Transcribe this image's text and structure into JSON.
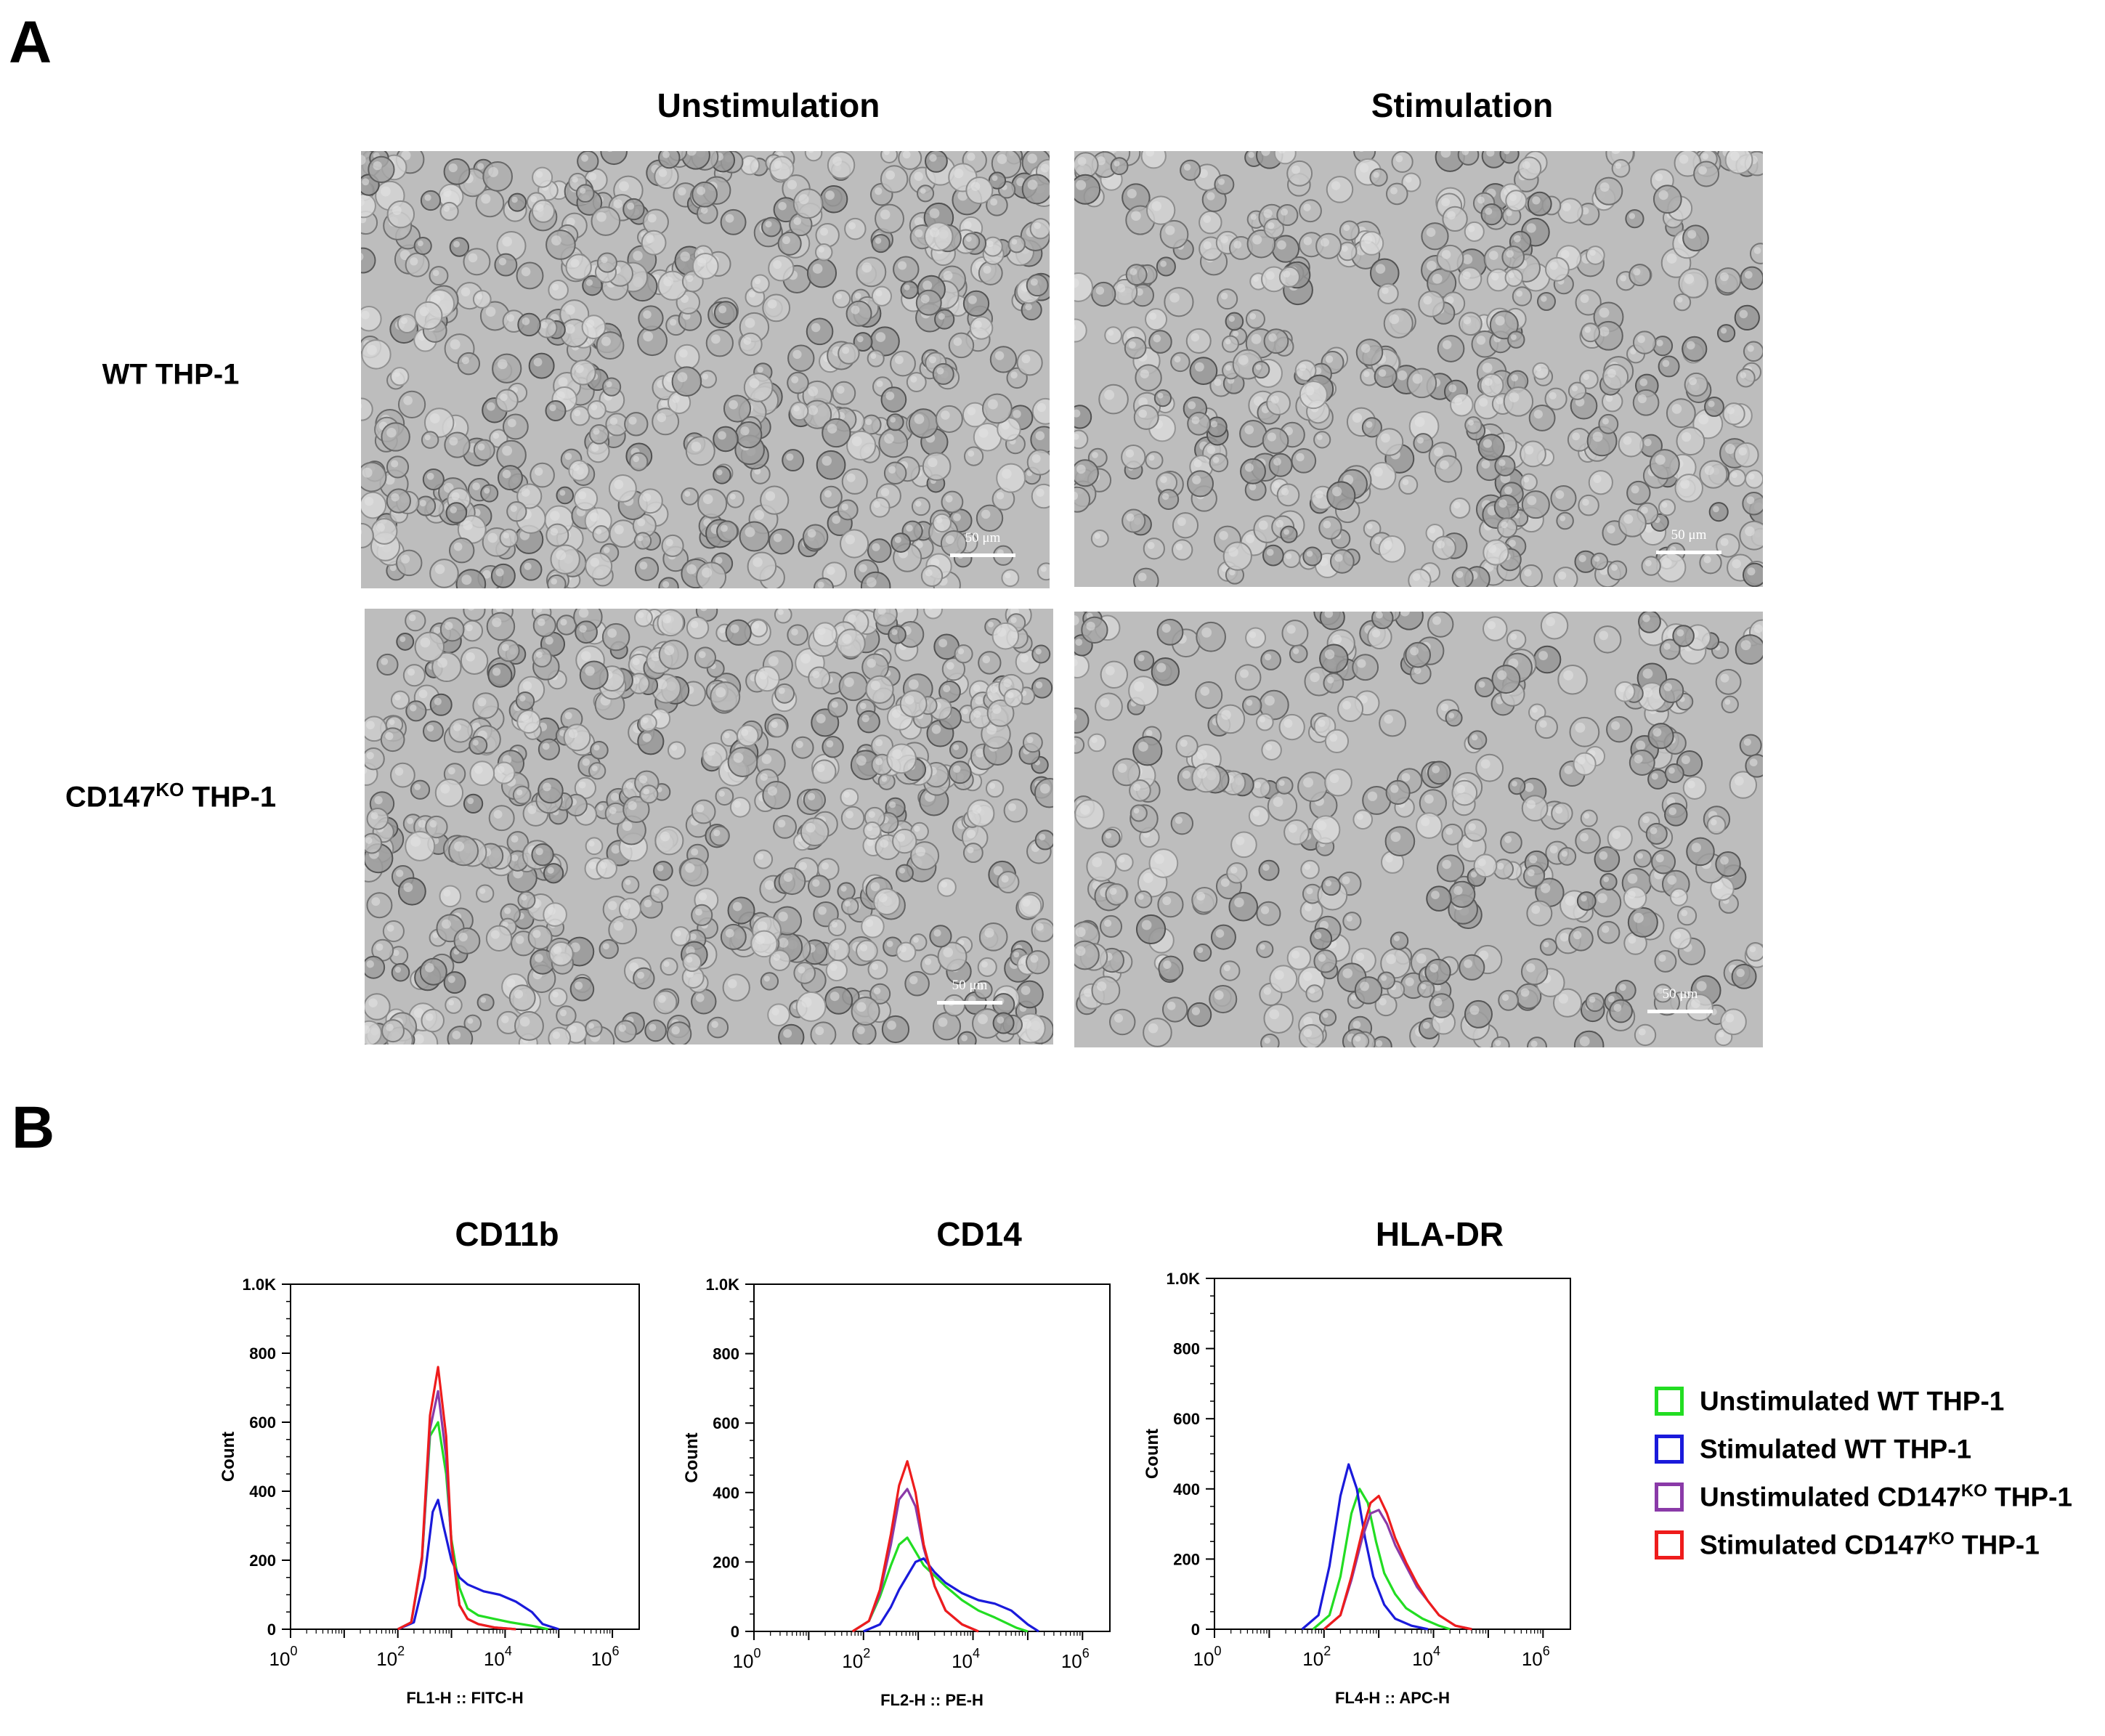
{
  "panel_a": {
    "letter": "A",
    "column_headers": [
      "Unstimulation",
      "Stimulation"
    ],
    "row_headers": [
      {
        "main": "WT THP-1",
        "sup": "",
        "rest": ""
      },
      {
        "main": "CD147",
        "sup": "KO",
        "rest": " THP-1"
      }
    ],
    "scale_bar_label": "50 μm"
  },
  "panel_b": {
    "letter": "B",
    "legend": [
      {
        "main": "Unstimulated WT THP-1",
        "sup": "",
        "rest": "",
        "color": "#22dd22"
      },
      {
        "main": "Stimulated WT THP-1",
        "sup": "",
        "rest": "",
        "color": "#1a1adb"
      },
      {
        "main": "Unstimulated CD147",
        "sup": "KO",
        "rest": " THP-1",
        "color": "#8a3aa8"
      },
      {
        "main": "Stimulated CD147",
        "sup": "KO",
        "rest": " THP-1",
        "color": "#ee1c1c"
      }
    ]
  },
  "chart_data": [
    {
      "type": "line",
      "title": "CD11b",
      "xlabel": "FL1-H :: FITC-H",
      "ylabel": "Count",
      "xscale": "log",
      "xlim": [
        0,
        6.5
      ],
      "ylim": [
        0,
        1000
      ],
      "y_ticks": [
        0,
        200,
        400,
        600,
        800,
        1000
      ],
      "y_tick_labels": [
        "0",
        "200",
        "400",
        "600",
        "800",
        "1.0K"
      ],
      "x_tick_labels": [
        {
          "base": "10",
          "exp": "0"
        },
        {
          "base": "10",
          "exp": "2"
        },
        {
          "base": "10",
          "exp": "4"
        },
        {
          "base": "10",
          "exp": "6"
        }
      ],
      "series": [
        {
          "name": "Unstimulated WT THP-1",
          "color": "#22dd22",
          "x": [
            2.0,
            2.25,
            2.45,
            2.6,
            2.75,
            2.9,
            3.0,
            3.15,
            3.3,
            3.5,
            3.8,
            4.1,
            4.5,
            4.8
          ],
          "y": [
            0,
            20,
            200,
            560,
            600,
            450,
            260,
            120,
            60,
            40,
            30,
            20,
            10,
            0
          ]
        },
        {
          "name": "Stimulated WT THP-1",
          "color": "#1a1adb",
          "x": [
            2.0,
            2.3,
            2.5,
            2.65,
            2.75,
            2.85,
            3.0,
            3.15,
            3.3,
            3.6,
            3.9,
            4.2,
            4.5,
            4.7,
            5.0
          ],
          "y": [
            0,
            20,
            150,
            340,
            375,
            300,
            200,
            150,
            130,
            110,
            100,
            80,
            50,
            15,
            0
          ]
        },
        {
          "name": "Unstimulated CD147KO THP-1",
          "color": "#8a3aa8",
          "x": [
            2.0,
            2.25,
            2.45,
            2.6,
            2.75,
            2.9,
            3.0,
            3.15,
            3.3,
            3.5,
            3.8,
            4.2
          ],
          "y": [
            0,
            20,
            200,
            580,
            690,
            500,
            240,
            70,
            30,
            15,
            5,
            0
          ]
        },
        {
          "name": "Stimulated CD147KO THP-1",
          "color": "#ee1c1c",
          "x": [
            2.0,
            2.25,
            2.45,
            2.6,
            2.75,
            2.9,
            3.0,
            3.15,
            3.3,
            3.5,
            3.8,
            4.2
          ],
          "y": [
            0,
            20,
            210,
            620,
            760,
            560,
            250,
            70,
            30,
            15,
            5,
            0
          ]
        }
      ]
    },
    {
      "type": "line",
      "title": "CD14",
      "xlabel": "FL2-H :: PE-H",
      "ylabel": "Count",
      "xscale": "log",
      "xlim": [
        0,
        6.5
      ],
      "ylim": [
        0,
        1000
      ],
      "y_ticks": [
        0,
        200,
        400,
        600,
        800,
        1000
      ],
      "y_tick_labels": [
        "0",
        "200",
        "400",
        "600",
        "800",
        "1.0K"
      ],
      "x_tick_labels": [
        {
          "base": "10",
          "exp": "0"
        },
        {
          "base": "10",
          "exp": "2"
        },
        {
          "base": "10",
          "exp": "4"
        },
        {
          "base": "10",
          "exp": "6"
        }
      ],
      "series": [
        {
          "name": "Unstimulated WT THP-1",
          "color": "#22dd22",
          "x": [
            1.8,
            2.1,
            2.3,
            2.5,
            2.65,
            2.8,
            2.95,
            3.1,
            3.3,
            3.5,
            3.8,
            4.1,
            4.4,
            4.8,
            5.0
          ],
          "y": [
            0,
            30,
            100,
            190,
            250,
            270,
            230,
            190,
            160,
            130,
            90,
            60,
            40,
            10,
            0
          ]
        },
        {
          "name": "Stimulated WT THP-1",
          "color": "#1a1adb",
          "x": [
            2.0,
            2.3,
            2.5,
            2.65,
            2.8,
            2.95,
            3.1,
            3.3,
            3.5,
            3.8,
            4.1,
            4.4,
            4.7,
            5.0,
            5.2
          ],
          "y": [
            0,
            20,
            70,
            120,
            160,
            200,
            210,
            170,
            140,
            110,
            90,
            80,
            60,
            20,
            0
          ]
        },
        {
          "name": "Unstimulated CD147KO THP-1",
          "color": "#8a3aa8",
          "x": [
            1.8,
            2.1,
            2.3,
            2.5,
            2.65,
            2.8,
            2.95,
            3.1,
            3.3,
            3.5,
            3.8,
            4.1
          ],
          "y": [
            0,
            30,
            110,
            250,
            380,
            410,
            360,
            240,
            130,
            60,
            20,
            0
          ]
        },
        {
          "name": "Stimulated CD147KO THP-1",
          "color": "#ee1c1c",
          "x": [
            1.8,
            2.1,
            2.3,
            2.5,
            2.65,
            2.8,
            2.95,
            3.1,
            3.3,
            3.5,
            3.8,
            4.1
          ],
          "y": [
            0,
            30,
            120,
            280,
            420,
            490,
            400,
            250,
            130,
            60,
            20,
            0
          ]
        }
      ]
    },
    {
      "type": "line",
      "title": "HLA-DR",
      "xlabel": "FL4-H :: APC-H",
      "ylabel": "Count",
      "xscale": "log",
      "xlim": [
        0,
        6.5
      ],
      "ylim": [
        0,
        1000
      ],
      "y_ticks": [
        0,
        200,
        400,
        600,
        800,
        1000
      ],
      "y_tick_labels": [
        "0",
        "200",
        "400",
        "600",
        "800",
        "1.0K"
      ],
      "x_tick_labels": [
        {
          "base": "10",
          "exp": "0"
        },
        {
          "base": "10",
          "exp": "2"
        },
        {
          "base": "10",
          "exp": "4"
        },
        {
          "base": "10",
          "exp": "6"
        }
      ],
      "series": [
        {
          "name": "Unstimulated WT THP-1",
          "color": "#22dd22",
          "x": [
            1.8,
            2.1,
            2.3,
            2.5,
            2.65,
            2.8,
            2.95,
            3.1,
            3.3,
            3.5,
            3.8,
            4.1,
            4.3
          ],
          "y": [
            0,
            40,
            150,
            330,
            400,
            360,
            250,
            160,
            100,
            60,
            30,
            10,
            0
          ]
        },
        {
          "name": "Stimulated WT THP-1",
          "color": "#1a1adb",
          "x": [
            1.6,
            1.9,
            2.1,
            2.3,
            2.45,
            2.6,
            2.75,
            2.9,
            3.1,
            3.3,
            3.6,
            3.9
          ],
          "y": [
            0,
            40,
            180,
            380,
            470,
            400,
            260,
            150,
            70,
            30,
            10,
            0
          ]
        },
        {
          "name": "Unstimulated CD147KO THP-1",
          "color": "#8a3aa8",
          "x": [
            2.0,
            2.3,
            2.5,
            2.7,
            2.85,
            3.0,
            3.15,
            3.3,
            3.5,
            3.7,
            3.9,
            4.1,
            4.4,
            4.7
          ],
          "y": [
            0,
            40,
            140,
            260,
            330,
            340,
            300,
            240,
            180,
            120,
            80,
            40,
            10,
            0
          ]
        },
        {
          "name": "Stimulated CD147KO THP-1",
          "color": "#ee1c1c",
          "x": [
            2.0,
            2.3,
            2.5,
            2.7,
            2.85,
            3.0,
            3.15,
            3.3,
            3.5,
            3.7,
            3.9,
            4.1,
            4.4,
            4.7
          ],
          "y": [
            0,
            40,
            150,
            280,
            360,
            380,
            330,
            260,
            190,
            130,
            80,
            40,
            10,
            0
          ]
        }
      ]
    }
  ]
}
